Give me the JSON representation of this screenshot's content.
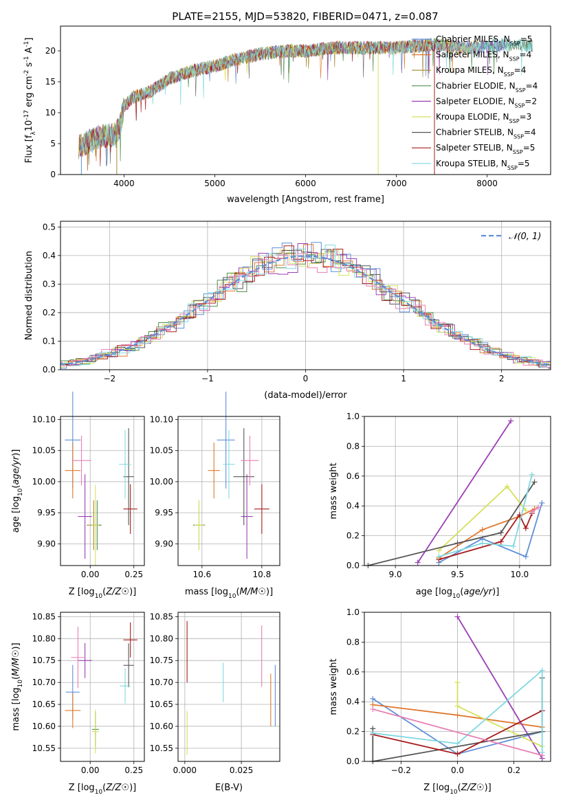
{
  "title": "PLATE=2155, MJD=53820, FIBERID=0471, z=0.087",
  "colors": {
    "series": [
      "#5f8fd6",
      "#e0782e",
      "#a6862a",
      "#4e8f4e",
      "#9a3fb5",
      "#d6e05a",
      "#555555",
      "#a81c1c",
      "#7fd8e0"
    ],
    "hist_extra": "#e87fb4",
    "gaussian": "#5f8fd6"
  },
  "chart_data": [
    {
      "type": "line",
      "panel": "spectrum",
      "title": "PLATE=2155, MJD=53820, FIBERID=0471, z=0.087",
      "xlabel": "wavelength [Angstrom, rest frame]",
      "ylabel_parts": [
        "Flux [f",
        "λ",
        "10",
        "-17",
        " erg cm",
        "-2",
        " s",
        "-1",
        " A",
        "-1",
        "]"
      ],
      "xlim": [
        3300,
        8700
      ],
      "ylim": [
        0,
        24
      ],
      "xticks": [
        4000,
        5000,
        6000,
        7000,
        8000
      ],
      "yticks": [
        0,
        5,
        10,
        15,
        20
      ],
      "grid": false,
      "legend_position": "right",
      "legend": [
        {
          "label": "Chabrier MILES, N",
          "sub": "SSP",
          "value": "=5"
        },
        {
          "label": "Salpeter MILES, N",
          "sub": "SSP",
          "value": "=4"
        },
        {
          "label": "Kroupa MILES, N",
          "sub": "SSP",
          "value": "=4"
        },
        {
          "label": "Chabrier ELODIE, N",
          "sub": "SSP",
          "value": "=4"
        },
        {
          "label": "Salpeter ELODIE, N",
          "sub": "SSP",
          "value": "=2"
        },
        {
          "label": "Kroupa ELODIE, N",
          "sub": "SSP",
          "value": "=3"
        },
        {
          "label": "Chabrier STELIB, N",
          "sub": "SSP",
          "value": "=4"
        },
        {
          "label": "Salpeter STELIB, N",
          "sub": "SSP",
          "value": "=5"
        },
        {
          "label": "Kroupa STELIB, N",
          "sub": "SSP",
          "value": "=5"
        }
      ],
      "continuum": [
        [
          3500,
          4.5
        ],
        [
          3700,
          6
        ],
        [
          3900,
          6.5
        ],
        [
          3950,
          7.5
        ],
        [
          4000,
          11
        ],
        [
          4100,
          12.5
        ],
        [
          4300,
          13.5
        ],
        [
          4500,
          15.5
        ],
        [
          4800,
          17
        ],
        [
          5000,
          17.5
        ],
        [
          5200,
          18.5
        ],
        [
          5500,
          19.5
        ],
        [
          5800,
          20
        ],
        [
          6000,
          20
        ],
        [
          6300,
          20.5
        ],
        [
          6600,
          20.5
        ],
        [
          7000,
          20.5
        ],
        [
          7400,
          21
        ],
        [
          7800,
          20.5
        ],
        [
          8200,
          21
        ],
        [
          8500,
          20.8
        ]
      ],
      "dropouts": [
        [
          3530,
          0
        ],
        [
          3920,
          2
        ],
        [
          6800,
          5
        ],
        [
          7420,
          7
        ]
      ]
    },
    {
      "type": "step",
      "panel": "residual-histogram",
      "xlabel": "(data-model)/error",
      "ylabel": "Normed distribution",
      "xlim": [
        -2.5,
        2.5
      ],
      "ylim": [
        0,
        0.52
      ],
      "xticks": [
        -2,
        -1,
        0,
        1,
        2
      ],
      "yticks": [
        0.0,
        0.1,
        0.2,
        0.3,
        0.4,
        0.5
      ],
      "grid": true,
      "legend_position": "top-right",
      "legend": [
        "𝒩(0, 1)"
      ]
    },
    {
      "type": "scatter",
      "panel": "age-vs-Z",
      "xlabel": "Z [log10(Z/Z☉)]",
      "ylabel": "age  [log10(age/yr)]",
      "xlim": [
        -0.17,
        0.31
      ],
      "ylim": [
        9.865,
        10.105
      ],
      "xticks": [
        0.0,
        0.25
      ],
      "yticks": [
        9.9,
        9.95,
        10.0,
        10.05,
        10.1
      ],
      "grid": true,
      "points": [
        {
          "x": -0.1,
          "xe": 0.09,
          "y": 10.067,
          "ye": 0.078,
          "series": 0
        },
        {
          "x": -0.1,
          "xe": 0.09,
          "y": 10.018,
          "ye": 0.045,
          "series": 1
        },
        {
          "x": 0.02,
          "xe": 0.08,
          "y": 9.93,
          "ye": 0.04,
          "series": 2
        },
        {
          "x": 0.04,
          "xe": 0.05,
          "y": 9.93,
          "ye": 0.04,
          "series": 3
        },
        {
          "x": -0.03,
          "xe": 0.08,
          "y": 9.944,
          "ye": 0.068,
          "series": 4
        },
        {
          "x": 0.03,
          "xe": 0.04,
          "y": 9.93,
          "ye": 0.065,
          "series": 5
        },
        {
          "x": 0.22,
          "xe": 0.06,
          "y": 10.008,
          "ye": 0.078,
          "series": 6
        },
        {
          "x": 0.23,
          "xe": 0.08,
          "y": 9.956,
          "ye": 0.04,
          "series": 7
        },
        {
          "x": 0.2,
          "xe": 0.07,
          "y": 10.028,
          "ye": 0.055,
          "series": 8
        },
        {
          "x": -0.05,
          "xe": 0.11,
          "y": 10.034,
          "ye": 0.04,
          "series": 9
        }
      ]
    },
    {
      "type": "scatter",
      "panel": "age-vs-mass",
      "xlabel": "mass [log10(M/M☉)]",
      "ylabel": "",
      "xlim": [
        10.52,
        10.86
      ],
      "ylim": [
        9.865,
        10.105
      ],
      "xticks": [
        10.6,
        10.8
      ],
      "yticks": [
        9.9,
        9.95,
        10.0,
        10.05,
        10.1
      ],
      "grid": true,
      "points": [
        {
          "x": 10.68,
          "xe": 0.06,
          "y": 10.067,
          "ye": 0.078,
          "series": 0
        },
        {
          "x": 10.64,
          "xe": 0.04,
          "y": 10.018,
          "ye": 0.045,
          "series": 1
        },
        {
          "x": 10.59,
          "xe": 0.04,
          "y": 9.93,
          "ye": 0.04,
          "series": 3
        },
        {
          "x": 10.75,
          "xe": 0.04,
          "y": 9.944,
          "ye": 0.068,
          "series": 4
        },
        {
          "x": 10.59,
          "xe": 0.03,
          "y": 9.93,
          "ye": 0.04,
          "series": 5
        },
        {
          "x": 10.74,
          "xe": 0.07,
          "y": 10.008,
          "ye": 0.078,
          "series": 6
        },
        {
          "x": 10.8,
          "xe": 0.05,
          "y": 9.956,
          "ye": 0.04,
          "series": 7
        },
        {
          "x": 10.69,
          "xe": 0.04,
          "y": 10.028,
          "ye": 0.055,
          "series": 8
        },
        {
          "x": 10.76,
          "xe": 0.06,
          "y": 10.034,
          "ye": 0.04,
          "series": 9
        }
      ]
    },
    {
      "type": "line",
      "panel": "mass-weight-vs-age",
      "xlabel": "age  [log10(age/yr)]",
      "ylabel": "mass weight",
      "xlim": [
        8.75,
        10.25
      ],
      "ylim": [
        0,
        1.0
      ],
      "xticks": [
        9.0,
        9.5,
        10.0
      ],
      "yticks": [
        0.0,
        0.2,
        0.4,
        0.6,
        0.8,
        1.0
      ],
      "grid": true,
      "series": [
        {
          "series": 0,
          "points": [
            [
              9.35,
              0.02
            ],
            [
              9.7,
              0.18
            ],
            [
              10.05,
              0.06
            ],
            [
              10.18,
              0.42
            ]
          ]
        },
        {
          "series": 1,
          "points": [
            [
              9.35,
              0.05
            ],
            [
              9.7,
              0.24
            ],
            [
              10.0,
              0.33
            ],
            [
              10.12,
              0.38
            ]
          ]
        },
        {
          "series": 4,
          "points": [
            [
              9.18,
              0.02
            ],
            [
              9.93,
              0.97
            ]
          ]
        },
        {
          "series": 5,
          "points": [
            [
              9.35,
              0.1
            ],
            [
              9.9,
              0.53
            ],
            [
              10.05,
              0.37
            ]
          ]
        },
        {
          "series": 6,
          "points": [
            [
              8.78,
              0.0
            ],
            [
              9.5,
              0.15
            ],
            [
              9.85,
              0.22
            ],
            [
              10.12,
              0.56
            ]
          ]
        },
        {
          "series": 7,
          "points": [
            [
              9.35,
              0.04
            ],
            [
              9.85,
              0.16
            ],
            [
              10.0,
              0.34
            ],
            [
              10.05,
              0.25
            ],
            [
              10.1,
              0.35
            ]
          ]
        },
        {
          "series": 8,
          "points": [
            [
              9.35,
              0.06
            ],
            [
              9.7,
              0.15
            ],
            [
              9.95,
              0.13
            ],
            [
              10.1,
              0.61
            ]
          ]
        },
        {
          "series": 9,
          "points": [
            [
              10.1,
              0.36
            ],
            [
              10.15,
              0.39
            ]
          ]
        }
      ]
    },
    {
      "type": "scatter",
      "panel": "mass-vs-Z",
      "xlabel": "Z [log10(Z/Z☉)]",
      "ylabel": "mass [log10(M/M☉)]",
      "xlim": [
        -0.17,
        0.31
      ],
      "ylim": [
        10.52,
        10.86
      ],
      "xticks": [
        0.0,
        0.25
      ],
      "yticks": [
        10.55,
        10.6,
        10.65,
        10.7,
        10.75,
        10.8,
        10.85
      ],
      "grid": true,
      "points": [
        {
          "x": -0.1,
          "xe": 0.08,
          "y": 10.678,
          "ye": 0.062,
          "series": 0
        },
        {
          "x": -0.1,
          "xe": 0.09,
          "y": 10.636,
          "ye": 0.04,
          "series": 1
        },
        {
          "x": 0.03,
          "xe": 0.04,
          "y": 10.593,
          "ye": 0.04,
          "series": 3
        },
        {
          "x": -0.03,
          "xe": 0.08,
          "y": 10.75,
          "ye": 0.04,
          "series": 4
        },
        {
          "x": 0.03,
          "xe": 0.04,
          "y": 10.588,
          "ye": 0.05,
          "series": 5
        },
        {
          "x": 0.22,
          "xe": 0.06,
          "y": 10.739,
          "ye": 0.05,
          "series": 6
        },
        {
          "x": 0.23,
          "xe": 0.08,
          "y": 10.797,
          "ye": 0.04,
          "series": 7
        },
        {
          "x": 0.2,
          "xe": 0.06,
          "y": 10.692,
          "ye": 0.04,
          "series": 8
        },
        {
          "x": -0.07,
          "xe": 0.08,
          "y": 10.757,
          "ye": 0.07,
          "series": 9
        }
      ]
    },
    {
      "type": "scatter",
      "panel": "mass-vs-EBV",
      "xlabel": "E(B-V)",
      "ylabel": "",
      "xlim": [
        -0.003,
        0.042
      ],
      "ylim": [
        10.52,
        10.86
      ],
      "xticks": [
        0.0,
        0.025
      ],
      "yticks": [
        10.55,
        10.6,
        10.65,
        10.7,
        10.75,
        10.8,
        10.85
      ],
      "grid": true,
      "points": [
        {
          "x": 0.04,
          "xe": 0,
          "y": 10.67,
          "ye": 0.07,
          "series": 0
        },
        {
          "x": 0.038,
          "xe": 0,
          "y": 10.66,
          "ye": 0.06,
          "series": 1
        },
        {
          "x": 0.001,
          "xe": 0,
          "y": 10.77,
          "ye": 0.07,
          "series": 7
        },
        {
          "x": 0.001,
          "xe": 0,
          "y": 10.585,
          "ye": 0.05,
          "series": 5
        },
        {
          "x": 0.017,
          "xe": 0,
          "y": 10.7,
          "ye": 0.045,
          "series": 8
        },
        {
          "x": 0.034,
          "xe": 0,
          "y": 10.76,
          "ye": 0.07,
          "series": 9
        }
      ]
    },
    {
      "type": "line",
      "panel": "mass-weight-vs-Z",
      "xlabel": "Z [log10(Z/Z☉)]",
      "ylabel": "mass weight",
      "xlim": [
        -0.33,
        0.33
      ],
      "ylim": [
        0,
        1.0
      ],
      "xticks": [
        -0.2,
        0.0,
        0.2
      ],
      "yticks": [
        0.0,
        0.2,
        0.4,
        0.6,
        0.8,
        1.0
      ],
      "grid": true,
      "series": [
        {
          "series": 0,
          "points": [
            [
              -0.3,
              0.42
            ],
            [
              0.0,
              0.05
            ],
            [
              0.3,
              0.2
            ]
          ]
        },
        {
          "series": 1,
          "points": [
            [
              -0.3,
              0.38
            ],
            [
              0.0,
              0.31
            ],
            [
              0.3,
              0.23
            ]
          ]
        },
        {
          "series": 4,
          "points": [
            [
              0.0,
              0.97
            ],
            [
              0.3,
              0.02
            ]
          ]
        },
        {
          "series": 5,
          "points": [
            [
              0.0,
              0.53
            ],
            [
              0.0,
              0.37
            ],
            [
              0.3,
              0.1
            ]
          ]
        },
        {
          "series": 6,
          "points": [
            [
              -0.3,
              0.22
            ],
            [
              -0.3,
              0.0
            ],
            [
              0.3,
              0.2
            ],
            [
              0.3,
              0.56
            ]
          ]
        },
        {
          "series": 7,
          "points": [
            [
              -0.3,
              0.18
            ],
            [
              0.0,
              0.05
            ],
            [
              0.3,
              0.34
            ]
          ]
        },
        {
          "series": 8,
          "points": [
            [
              -0.3,
              0.19
            ],
            [
              0.0,
              0.12
            ],
            [
              0.3,
              0.61
            ],
            [
              0.3,
              0.06
            ]
          ]
        },
        {
          "series": 9,
          "points": [
            [
              -0.3,
              0.35
            ],
            [
              0.3,
              0.04
            ]
          ]
        }
      ]
    }
  ]
}
